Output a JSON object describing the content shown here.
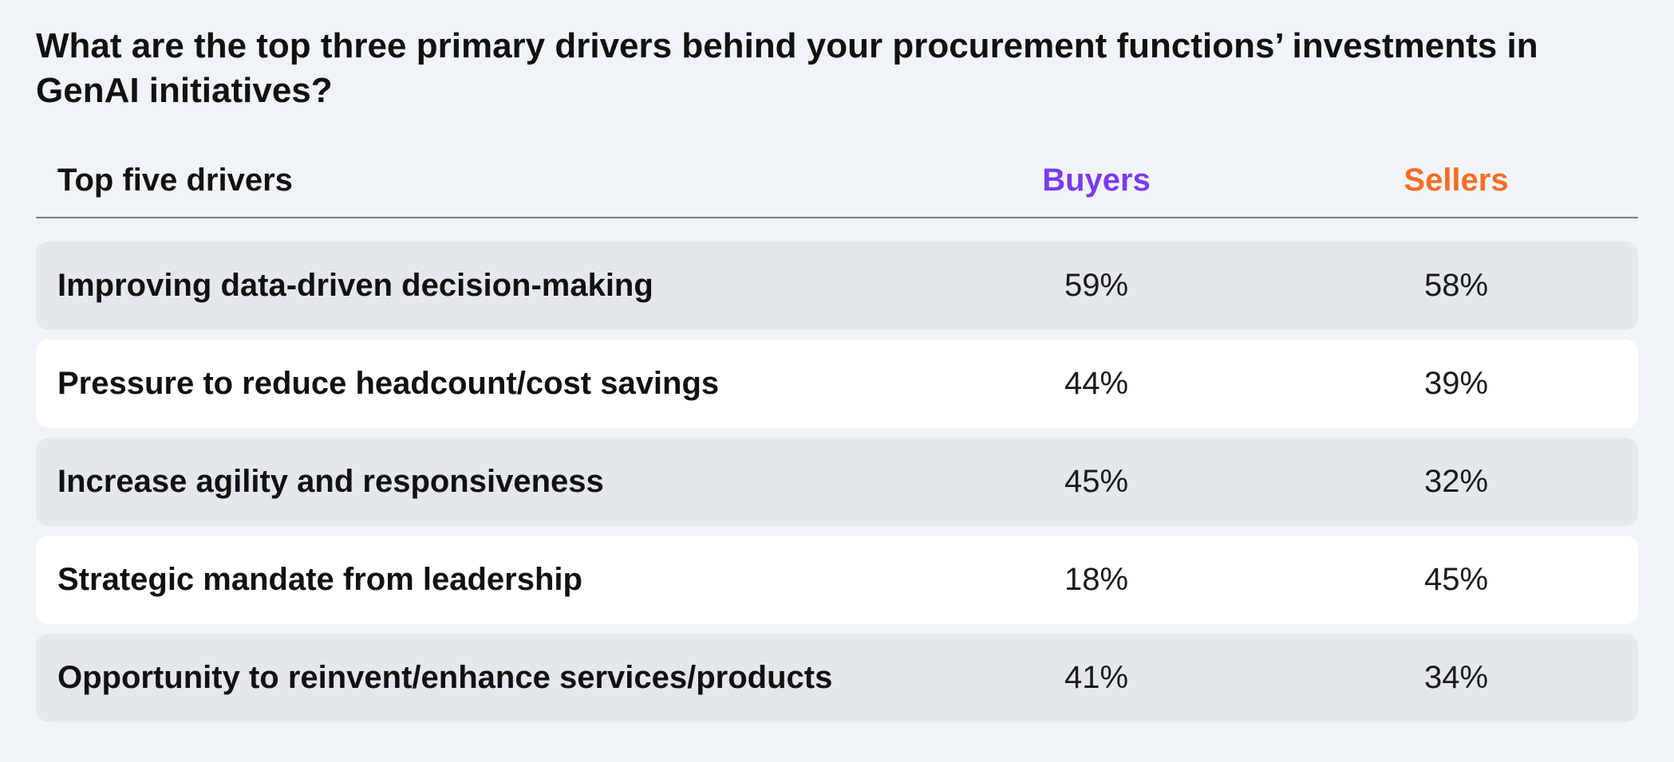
{
  "title": "What are the top three primary drivers behind your procurement functions’ investments in GenAI initiatives?",
  "colors": {
    "buyers": "#7c3aed",
    "sellers": "#f36d26",
    "row_shaded": "#e4e7ec",
    "row_plain": "#ffffff",
    "page_background": "#f1f4f7"
  },
  "chart_data": {
    "type": "table",
    "title": "What are the top three primary drivers behind your procurement functions’ investments in GenAI initiatives?",
    "columns": [
      "Top five drivers",
      "Buyers",
      "Sellers"
    ],
    "rows": [
      {
        "driver": "Improving data-driven decision-making",
        "buyers": "59%",
        "sellers": "58%"
      },
      {
        "driver": "Pressure to reduce headcount/cost savings",
        "buyers": "44%",
        "sellers": "39%"
      },
      {
        "driver": "Increase agility and responsiveness",
        "buyers": "45%",
        "sellers": "32%"
      },
      {
        "driver": "Strategic mandate from leadership",
        "buyers": "18%",
        "sellers": "45%"
      },
      {
        "driver": "Opportunity to reinvent/enhance services/products",
        "buyers": "41%",
        "sellers": "34%"
      }
    ]
  }
}
